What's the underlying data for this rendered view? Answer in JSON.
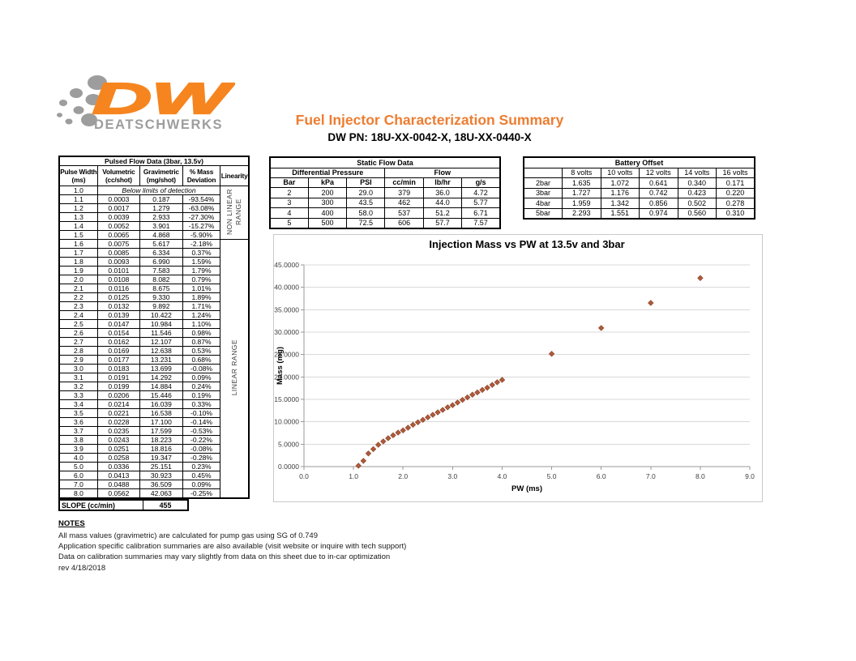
{
  "header": {
    "logo_dw": "DW",
    "logo_wordmark": "DEATSCHWERKS",
    "logo_orange": "#F6851F",
    "logo_gray": "#9D9D9D",
    "title": "Fuel Injector Characterization Summary",
    "title_color": "#ED7D31",
    "part_numbers": "DW PN: 18U-XX-0042-X, 18U-XX-0440-X"
  },
  "pulsed_flow": {
    "title": "Pulsed Flow Data (3bar, 13.5v)",
    "col_headers": [
      [
        "Pulse Width",
        "(ms)"
      ],
      [
        "Volumetric",
        "(cc/shot)"
      ],
      [
        "Gravimetric",
        "(mg/shot)"
      ],
      [
        "% Mass",
        "Deviation"
      ],
      [
        "Linearity",
        ""
      ]
    ],
    "below_limits_label": "Below limits of detection",
    "non_linear_label": "NON LINEAR\nRANGE",
    "linear_label": "LINEAR RANGE",
    "rows": [
      [
        "1.0",
        "",
        "",
        ""
      ],
      [
        "1.1",
        "0.0003",
        "0.187",
        "-93.54%"
      ],
      [
        "1.2",
        "0.0017",
        "1.279",
        "-63.08%"
      ],
      [
        "1.3",
        "0.0039",
        "2.933",
        "-27.30%"
      ],
      [
        "1.4",
        "0.0052",
        "3.901",
        "-15.27%"
      ],
      [
        "1.5",
        "0.0065",
        "4.868",
        "-5.90%"
      ],
      [
        "1.6",
        "0.0075",
        "5.617",
        "-2.18%"
      ],
      [
        "1.7",
        "0.0085",
        "6.334",
        "0.37%"
      ],
      [
        "1.8",
        "0.0093",
        "6.990",
        "1.59%"
      ],
      [
        "1.9",
        "0.0101",
        "7.583",
        "1.79%"
      ],
      [
        "2.0",
        "0.0108",
        "8.082",
        "0.79%"
      ],
      [
        "2.1",
        "0.0116",
        "8.675",
        "1.01%"
      ],
      [
        "2.2",
        "0.0125",
        "9.330",
        "1.89%"
      ],
      [
        "2.3",
        "0.0132",
        "9.892",
        "1.71%"
      ],
      [
        "2.4",
        "0.0139",
        "10.422",
        "1.24%"
      ],
      [
        "2.5",
        "0.0147",
        "10.984",
        "1.10%"
      ],
      [
        "2.6",
        "0.0154",
        "11.546",
        "0.98%"
      ],
      [
        "2.7",
        "0.0162",
        "12.107",
        "0.87%"
      ],
      [
        "2.8",
        "0.0169",
        "12.638",
        "0.53%"
      ],
      [
        "2.9",
        "0.0177",
        "13.231",
        "0.68%"
      ],
      [
        "3.0",
        "0.0183",
        "13.699",
        "-0.08%"
      ],
      [
        "3.1",
        "0.0191",
        "14.292",
        "0.09%"
      ],
      [
        "3.2",
        "0.0199",
        "14.884",
        "0.24%"
      ],
      [
        "3.3",
        "0.0206",
        "15.446",
        "0.19%"
      ],
      [
        "3.4",
        "0.0214",
        "16.039",
        "0.33%"
      ],
      [
        "3.5",
        "0.0221",
        "16.538",
        "-0.10%"
      ],
      [
        "3.6",
        "0.0228",
        "17.100",
        "-0.14%"
      ],
      [
        "3.7",
        "0.0235",
        "17.599",
        "-0.53%"
      ],
      [
        "3.8",
        "0.0243",
        "18.223",
        "-0.22%"
      ],
      [
        "3.9",
        "0.0251",
        "18.816",
        "-0.08%"
      ],
      [
        "4.0",
        "0.0258",
        "19.347",
        "-0.28%"
      ],
      [
        "5.0",
        "0.0336",
        "25.151",
        "0.23%"
      ],
      [
        "6.0",
        "0.0413",
        "30.923",
        "0.45%"
      ],
      [
        "7.0",
        "0.0488",
        "36.509",
        "0.09%"
      ],
      [
        "8.0",
        "0.0562",
        "42.063",
        "-0.25%"
      ]
    ],
    "slope_label": "SLOPE (cc/min)",
    "slope_value": "455"
  },
  "static_flow": {
    "title": "Static Flow Data",
    "group_headers": [
      "Differential Pressure",
      "Flow"
    ],
    "col_headers": [
      "Bar",
      "kPa",
      "PSI",
      "cc/min",
      "lb/hr",
      "g/s"
    ],
    "rows": [
      [
        "2",
        "200",
        "29.0",
        "379",
        "36.0",
        "4.72"
      ],
      [
        "3",
        "300",
        "43.5",
        "462",
        "44.0",
        "5.77"
      ],
      [
        "4",
        "400",
        "58.0",
        "537",
        "51.2",
        "6.71"
      ],
      [
        "5",
        "500",
        "72.5",
        "606",
        "57.7",
        "7.57"
      ]
    ]
  },
  "battery_offset": {
    "title": "Battery Offset",
    "col_headers": [
      "",
      "8 volts",
      "10 volts",
      "12 volts",
      "14 volts",
      "16 volts"
    ],
    "rows": [
      [
        "2bar",
        "1.635",
        "1.072",
        "0.641",
        "0.340",
        "0.171"
      ],
      [
        "3bar",
        "1.727",
        "1.176",
        "0.742",
        "0.423",
        "0.220"
      ],
      [
        "4bar",
        "1.959",
        "1.342",
        "0.856",
        "0.502",
        "0.278"
      ],
      [
        "5bar",
        "2.293",
        "1.551",
        "0.974",
        "0.560",
        "0.310"
      ]
    ]
  },
  "chart_data": {
    "type": "scatter",
    "title": "Injection Mass vs PW at 13.5v and 3bar",
    "xlabel": "PW (ms)",
    "ylabel": "Mass (mg)",
    "xlim": [
      0,
      9
    ],
    "ylim": [
      0,
      45
    ],
    "x_ticks": [
      "0.0",
      "1.0",
      "2.0",
      "3.0",
      "4.0",
      "5.0",
      "6.0",
      "7.0",
      "8.0",
      "9.0"
    ],
    "y_ticks": [
      "0.0000",
      "5.0000",
      "10.0000",
      "15.0000",
      "20.0000",
      "25.0000",
      "30.0000",
      "35.0000",
      "40.0000",
      "45.0000"
    ],
    "grid": true,
    "legend": "none",
    "marker_color": "#B05A3C",
    "marker_stroke": "#8B4529",
    "points": [
      [
        1.1,
        0.187
      ],
      [
        1.2,
        1.279
      ],
      [
        1.3,
        2.933
      ],
      [
        1.4,
        3.901
      ],
      [
        1.5,
        4.868
      ],
      [
        1.6,
        5.617
      ],
      [
        1.7,
        6.334
      ],
      [
        1.8,
        6.99
      ],
      [
        1.9,
        7.583
      ],
      [
        2.0,
        8.082
      ],
      [
        2.1,
        8.675
      ],
      [
        2.2,
        9.33
      ],
      [
        2.3,
        9.892
      ],
      [
        2.4,
        10.422
      ],
      [
        2.5,
        10.984
      ],
      [
        2.6,
        11.546
      ],
      [
        2.7,
        12.107
      ],
      [
        2.8,
        12.638
      ],
      [
        2.9,
        13.231
      ],
      [
        3.0,
        13.699
      ],
      [
        3.1,
        14.292
      ],
      [
        3.2,
        14.884
      ],
      [
        3.3,
        15.446
      ],
      [
        3.4,
        16.039
      ],
      [
        3.5,
        16.538
      ],
      [
        3.6,
        17.1
      ],
      [
        3.7,
        17.599
      ],
      [
        3.8,
        18.223
      ],
      [
        3.9,
        18.816
      ],
      [
        4.0,
        19.347
      ],
      [
        5.0,
        25.151
      ],
      [
        6.0,
        30.923
      ],
      [
        7.0,
        36.509
      ],
      [
        8.0,
        42.063
      ]
    ]
  },
  "notes": {
    "title": "NOTES",
    "lines": [
      "All mass values (gravimetric) are calculated for pump gas using SG of 0.749",
      "Application specific calibration summaries are also available (visit website or inquire with tech support)",
      "Data on calibration summaries may vary slightly from data on this sheet due to in-car optimization",
      "rev 4/18/2018"
    ]
  }
}
